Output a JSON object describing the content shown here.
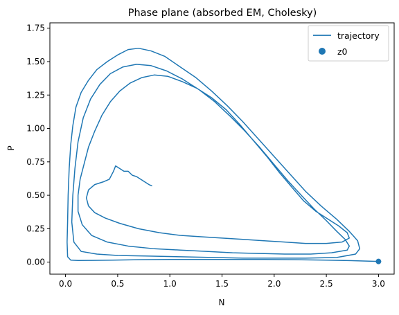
{
  "chart_data": {
    "type": "line",
    "title": "Phase plane (absorbed EM, Cholesky)",
    "xlabel": "N",
    "ylabel": "P",
    "xlim": [
      -0.15,
      3.15
    ],
    "ylim": [
      -0.09,
      1.79
    ],
    "x_ticks": [
      0.0,
      0.5,
      1.0,
      1.5,
      2.0,
      2.5,
      3.0
    ],
    "x_tick_labels": [
      "0.0",
      "0.5",
      "1.0",
      "1.5",
      "2.0",
      "2.5",
      "3.0"
    ],
    "y_ticks": [
      0.0,
      0.25,
      0.5,
      0.75,
      1.0,
      1.25,
      1.5,
      1.75
    ],
    "y_tick_labels": [
      "0.00",
      "0.25",
      "0.50",
      "0.75",
      "1.00",
      "1.25",
      "1.50",
      "1.75"
    ],
    "grid": false,
    "legend_position": "top-right",
    "colors": {
      "series": "#1f77b4"
    },
    "series": [
      {
        "name": "trajectory",
        "type": "line",
        "points": [
          [
            3.0,
            0.005
          ],
          [
            2.8,
            0.01
          ],
          [
            2.5,
            0.015
          ],
          [
            2.2,
            0.018
          ],
          [
            1.9,
            0.02
          ],
          [
            1.6,
            0.02
          ],
          [
            1.3,
            0.02
          ],
          [
            1.0,
            0.02
          ],
          [
            0.7,
            0.018
          ],
          [
            0.45,
            0.015
          ],
          [
            0.25,
            0.013
          ],
          [
            0.12,
            0.012
          ],
          [
            0.05,
            0.015
          ],
          [
            0.02,
            0.04
          ],
          [
            0.015,
            0.15
          ],
          [
            0.02,
            0.3
          ],
          [
            0.025,
            0.5
          ],
          [
            0.035,
            0.7
          ],
          [
            0.05,
            0.88
          ],
          [
            0.07,
            1.02
          ],
          [
            0.1,
            1.16
          ],
          [
            0.15,
            1.27
          ],
          [
            0.22,
            1.36
          ],
          [
            0.3,
            1.44
          ],
          [
            0.4,
            1.5
          ],
          [
            0.5,
            1.55
          ],
          [
            0.6,
            1.59
          ],
          [
            0.7,
            1.6
          ],
          [
            0.82,
            1.58
          ],
          [
            0.95,
            1.54
          ],
          [
            1.1,
            1.46
          ],
          [
            1.25,
            1.38
          ],
          [
            1.4,
            1.28
          ],
          [
            1.55,
            1.17
          ],
          [
            1.7,
            1.05
          ],
          [
            1.85,
            0.92
          ],
          [
            2.0,
            0.79
          ],
          [
            2.15,
            0.66
          ],
          [
            2.3,
            0.53
          ],
          [
            2.45,
            0.42
          ],
          [
            2.6,
            0.32
          ],
          [
            2.72,
            0.23
          ],
          [
            2.8,
            0.16
          ],
          [
            2.82,
            0.1
          ],
          [
            2.78,
            0.06
          ],
          [
            2.6,
            0.035
          ],
          [
            2.3,
            0.03
          ],
          [
            2.0,
            0.03
          ],
          [
            1.7,
            0.03
          ],
          [
            1.4,
            0.035
          ],
          [
            1.1,
            0.04
          ],
          [
            0.8,
            0.045
          ],
          [
            0.5,
            0.05
          ],
          [
            0.3,
            0.06
          ],
          [
            0.15,
            0.08
          ],
          [
            0.08,
            0.15
          ],
          [
            0.06,
            0.3
          ],
          [
            0.07,
            0.5
          ],
          [
            0.09,
            0.7
          ],
          [
            0.12,
            0.9
          ],
          [
            0.17,
            1.08
          ],
          [
            0.24,
            1.22
          ],
          [
            0.33,
            1.33
          ],
          [
            0.43,
            1.41
          ],
          [
            0.55,
            1.46
          ],
          [
            0.68,
            1.48
          ],
          [
            0.82,
            1.47
          ],
          [
            0.97,
            1.43
          ],
          [
            1.12,
            1.37
          ],
          [
            1.28,
            1.29
          ],
          [
            1.43,
            1.2
          ],
          [
            1.58,
            1.09
          ],
          [
            1.72,
            0.98
          ],
          [
            1.86,
            0.86
          ],
          [
            2.0,
            0.73
          ],
          [
            2.13,
            0.61
          ],
          [
            2.26,
            0.5
          ],
          [
            2.38,
            0.4
          ],
          [
            2.5,
            0.31
          ],
          [
            2.6,
            0.23
          ],
          [
            2.68,
            0.17
          ],
          [
            2.72,
            0.12
          ],
          [
            2.7,
            0.09
          ],
          [
            2.55,
            0.07
          ],
          [
            2.35,
            0.06
          ],
          [
            2.1,
            0.06
          ],
          [
            1.85,
            0.065
          ],
          [
            1.6,
            0.07
          ],
          [
            1.35,
            0.08
          ],
          [
            1.1,
            0.09
          ],
          [
            0.85,
            0.1
          ],
          [
            0.6,
            0.12
          ],
          [
            0.4,
            0.15
          ],
          [
            0.25,
            0.2
          ],
          [
            0.16,
            0.28
          ],
          [
            0.12,
            0.38
          ],
          [
            0.12,
            0.5
          ],
          [
            0.14,
            0.62
          ],
          [
            0.18,
            0.74
          ],
          [
            0.22,
            0.86
          ],
          [
            0.28,
            0.98
          ],
          [
            0.35,
            1.1
          ],
          [
            0.43,
            1.2
          ],
          [
            0.52,
            1.28
          ],
          [
            0.62,
            1.34
          ],
          [
            0.73,
            1.38
          ],
          [
            0.85,
            1.4
          ],
          [
            0.98,
            1.39
          ],
          [
            1.12,
            1.35
          ],
          [
            1.26,
            1.3
          ],
          [
            1.4,
            1.23
          ],
          [
            1.54,
            1.14
          ],
          [
            1.67,
            1.03
          ],
          [
            1.8,
            0.91
          ],
          [
            1.93,
            0.79
          ],
          [
            2.05,
            0.67
          ],
          [
            2.17,
            0.56
          ],
          [
            2.28,
            0.46
          ],
          [
            2.4,
            0.38
          ],
          [
            2.52,
            0.32
          ],
          [
            2.62,
            0.27
          ],
          [
            2.7,
            0.22
          ],
          [
            2.72,
            0.18
          ],
          [
            2.65,
            0.15
          ],
          [
            2.5,
            0.14
          ],
          [
            2.3,
            0.14
          ],
          [
            2.1,
            0.15
          ],
          [
            1.9,
            0.16
          ],
          [
            1.7,
            0.17
          ],
          [
            1.5,
            0.18
          ],
          [
            1.3,
            0.19
          ],
          [
            1.1,
            0.2
          ],
          [
            0.9,
            0.22
          ],
          [
            0.7,
            0.25
          ],
          [
            0.52,
            0.29
          ],
          [
            0.38,
            0.33
          ],
          [
            0.28,
            0.37
          ],
          [
            0.22,
            0.42
          ],
          [
            0.2,
            0.48
          ],
          [
            0.22,
            0.54
          ],
          [
            0.28,
            0.58
          ],
          [
            0.36,
            0.6
          ],
          [
            0.42,
            0.62
          ],
          [
            0.46,
            0.68
          ],
          [
            0.48,
            0.72
          ],
          [
            0.52,
            0.7
          ],
          [
            0.56,
            0.68
          ],
          [
            0.6,
            0.68
          ],
          [
            0.64,
            0.65
          ],
          [
            0.68,
            0.64
          ],
          [
            0.72,
            0.62
          ],
          [
            0.76,
            0.6
          ],
          [
            0.8,
            0.58
          ],
          [
            0.83,
            0.57
          ]
        ]
      },
      {
        "name": "z0",
        "type": "scatter",
        "points": [
          [
            3.0,
            0.005
          ]
        ]
      }
    ]
  }
}
